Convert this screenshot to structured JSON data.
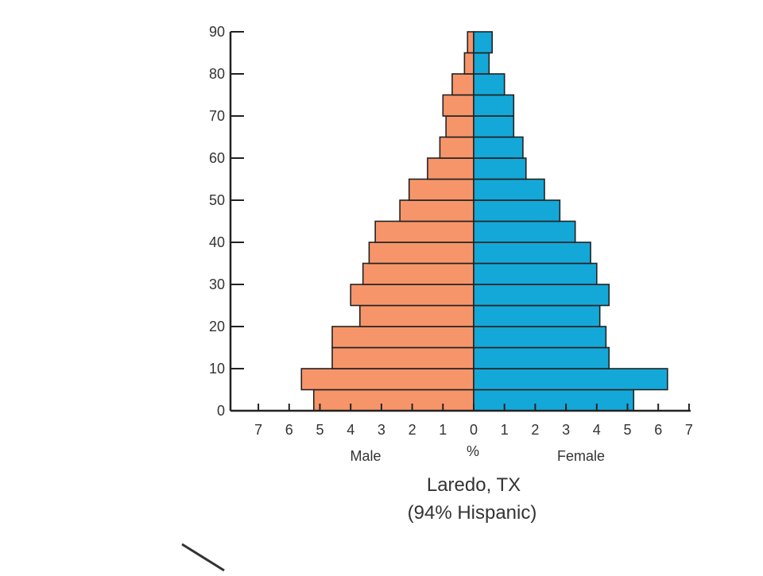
{
  "chart_data": {
    "type": "bar",
    "title": "Laredo, TX",
    "subtitle": "(94% Hispanic)",
    "xlabel": "%",
    "male_label": "Male",
    "female_label": "Female",
    "ylim": [
      0,
      90
    ],
    "y_ticks": [
      0,
      10,
      20,
      30,
      40,
      50,
      60,
      70,
      80,
      90
    ],
    "x_ticks_left": [
      7,
      6,
      5,
      4,
      3,
      2,
      1
    ],
    "x_ticks_right": [
      0,
      1,
      2,
      3,
      4,
      5,
      6,
      7
    ],
    "xlim": [
      -7,
      7
    ],
    "grid": false,
    "age_groups": [
      {
        "start": 0,
        "end": 5
      },
      {
        "start": 5,
        "end": 10
      },
      {
        "start": 10,
        "end": 15
      },
      {
        "start": 15,
        "end": 20
      },
      {
        "start": 20,
        "end": 25
      },
      {
        "start": 25,
        "end": 30
      },
      {
        "start": 30,
        "end": 35
      },
      {
        "start": 35,
        "end": 40
      },
      {
        "start": 40,
        "end": 45
      },
      {
        "start": 45,
        "end": 50
      },
      {
        "start": 50,
        "end": 55
      },
      {
        "start": 55,
        "end": 60
      },
      {
        "start": 60,
        "end": 65
      },
      {
        "start": 65,
        "end": 70
      },
      {
        "start": 70,
        "end": 75
      },
      {
        "start": 75,
        "end": 80
      },
      {
        "start": 80,
        "end": 85
      },
      {
        "start": 85,
        "end": 90
      }
    ],
    "series": [
      {
        "name": "Male",
        "color": "#f7956a",
        "values": [
          5.2,
          5.6,
          4.6,
          4.6,
          3.7,
          4.0,
          3.6,
          3.4,
          3.2,
          2.4,
          2.1,
          1.5,
          1.1,
          0.9,
          1.0,
          0.7,
          0.3,
          0.2
        ]
      },
      {
        "name": "Female",
        "color": "#14a8d8",
        "values": [
          5.2,
          6.3,
          4.4,
          4.3,
          4.1,
          4.4,
          4.0,
          3.8,
          3.3,
          2.8,
          2.3,
          1.7,
          1.6,
          1.3,
          1.3,
          1.0,
          0.5,
          0.6
        ]
      }
    ]
  }
}
